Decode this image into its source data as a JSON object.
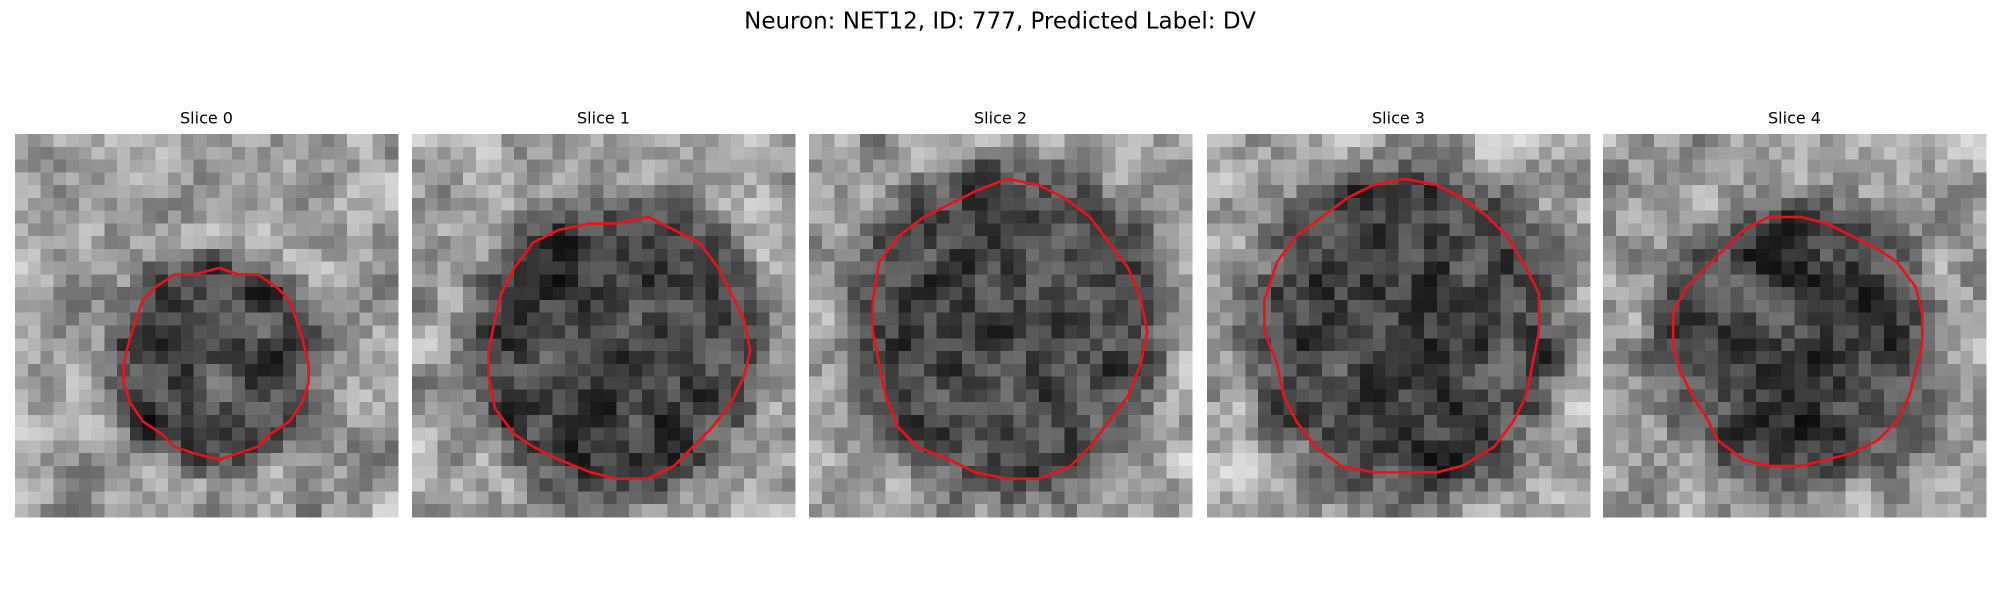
{
  "title": "Neuron: NET12, ID: 777, Predicted Label: DV",
  "panels": [
    {
      "title": "Slice 0"
    },
    {
      "title": "Slice 1"
    },
    {
      "title": "Slice 2"
    },
    {
      "title": "Slice 3"
    },
    {
      "title": "Slice 4"
    }
  ]
}
